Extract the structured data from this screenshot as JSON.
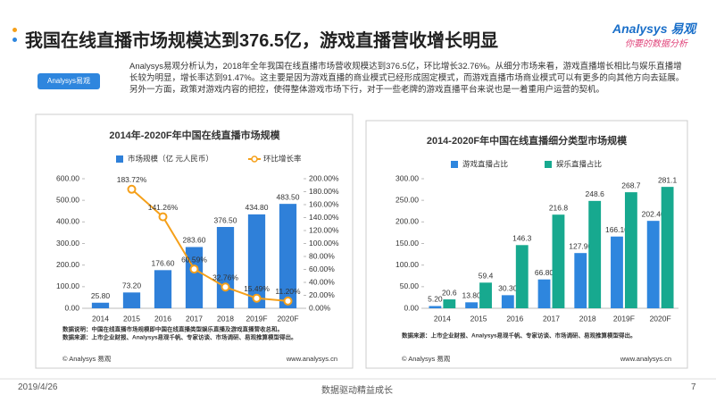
{
  "header": {
    "title": "我国在线直播市场规模达到376.5亿，游戏直播营收增长明显",
    "logo": "Analysys 易观",
    "slogan": "你要的数据分析",
    "icon_label": "Analysys易观",
    "paragraph": "Analysys易观分析认为，2018年全年我国在线直播市场营收规模达到376.5亿，环比增长32.76%。从细分市场来看，游戏直播增长相比与娱乐直播增长较为明显，增长率达到91.47%。这主要是因为游戏直播的商业模式已经形成固定模式，而游戏直播市场商业模式可以有更多的向其他方向去延展。另外一方面，政策对游戏内容的把控，使得整体游戏市场下行，对于一些老牌的游戏直播平台来说也是一着重用户运营的契机。"
  },
  "chart_data": [
    {
      "type": "bar",
      "title": "2014年-2020F年中国在线直播市场规模",
      "categories": [
        "2014",
        "2015",
        "2016",
        "2017",
        "2018",
        "2019F",
        "2020F"
      ],
      "series": [
        {
          "name": "市场规模（亿 元人民币）",
          "color": "#2f80d9",
          "values": [
            25.8,
            73.2,
            176.6,
            283.6,
            376.5,
            434.8,
            483.5
          ],
          "value_labels": [
            "25.80",
            "73.20",
            "176.60",
            "283.60",
            "376.50",
            "434.80",
            "483.50"
          ]
        },
        {
          "name": "环比增长率",
          "type": "line",
          "axis": "y2",
          "color": "#f5a01a",
          "values": [
            null,
            183.72,
            141.26,
            60.59,
            32.76,
            15.49,
            11.2
          ],
          "value_labels": [
            null,
            "183.72%",
            "141.26%",
            "60.59%",
            "32.76%",
            "15.49%",
            "11.20%"
          ]
        }
      ],
      "ylim": [
        0,
        600
      ],
      "yticks": [
        {
          "value": 0,
          "label": "0.00"
        },
        {
          "value": 100,
          "label": "100.00"
        },
        {
          "value": 200,
          "label": "200.00"
        },
        {
          "value": 300,
          "label": "300.00"
        },
        {
          "value": 400,
          "label": "400.00"
        },
        {
          "value": 500,
          "label": "500.00"
        },
        {
          "value": 600,
          "label": "600.00"
        }
      ],
      "y2lim": [
        0,
        200
      ],
      "y2ticks": [
        {
          "value": 0,
          "label": "0.00%"
        },
        {
          "value": 20,
          "label": "20.00%"
        },
        {
          "value": 40,
          "label": "40.00%"
        },
        {
          "value": 60,
          "label": "60.00%"
        },
        {
          "value": 80,
          "label": "80.00%"
        },
        {
          "value": 100,
          "label": "100.00%"
        },
        {
          "value": 120,
          "label": "120.00%"
        },
        {
          "value": 140,
          "label": "140.00%"
        },
        {
          "value": 160,
          "label": "160.00%"
        },
        {
          "value": 180,
          "label": "180.00%"
        },
        {
          "value": 200,
          "label": "200.00%"
        }
      ],
      "notes": [
        "数据说明：中国在线直播市场规模即中国在线直播类型娱乐直播及游戏直播营收总和。",
        "数据来源：上市企业财报、Analysys易观千帆、专家访谈、市场调研、易观推算模型得出。"
      ],
      "copyright": "© Analysys 易观",
      "url": "www.analysys.cn"
    },
    {
      "type": "bar",
      "title": "2014-2020F年中国在线直播细分类型市场规模",
      "categories": [
        "2014",
        "2015",
        "2016",
        "2017",
        "2018",
        "2019F",
        "2020F"
      ],
      "series": [
        {
          "name": "游戏直播占比",
          "color": "#2e86de",
          "values": [
            5.2,
            13.8,
            30.3,
            66.8,
            127.9,
            166.1,
            202.4
          ],
          "value_labels": [
            "5.20",
            "13.80",
            "30.30",
            "66.80",
            "127.90",
            "166.10",
            "202.40"
          ]
        },
        {
          "name": "娱乐直播占比",
          "color": "#17a98f",
          "values": [
            20.6,
            59.4,
            146.3,
            216.8,
            248.6,
            268.7,
            281.1
          ]
        }
      ],
      "ylim": [
        0,
        300
      ],
      "yticks": [
        {
          "value": 0,
          "label": "0.00"
        },
        {
          "value": 50,
          "label": "50.00"
        },
        {
          "value": 100,
          "label": "100.00"
        },
        {
          "value": 150,
          "label": "150.00"
        },
        {
          "value": 200,
          "label": "200.00"
        },
        {
          "value": 250,
          "label": "250.00"
        },
        {
          "value": 300,
          "label": "300.00"
        }
      ],
      "notes": [
        "数据来源：上市企业财报、Analysys易观千帆、专家访谈、市场调研、易观推算模型得出。"
      ],
      "copyright": "© Analysys 易观",
      "url": "www.analysys.cn"
    }
  ],
  "footer": {
    "date": "2019/4/26",
    "slogan": "数据驱动精益成长",
    "page": "7"
  }
}
